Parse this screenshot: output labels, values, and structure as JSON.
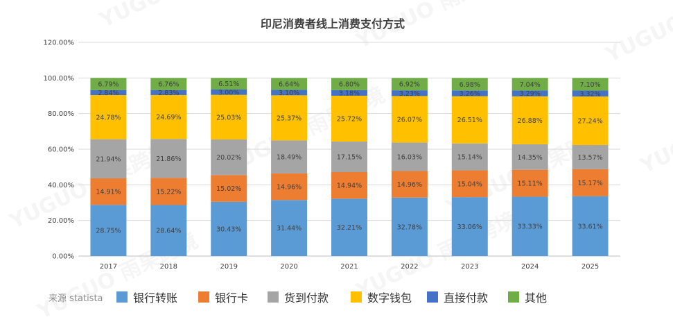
{
  "source_text": "来源 statista",
  "watermark": "YUGUO 雨果跨境",
  "chart_data": {
    "type": "bar",
    "stacked": true,
    "title": "印尼消费者线上消费支付方式",
    "xlabel": "",
    "ylabel": "",
    "ylim": [
      0,
      120
    ],
    "yticks": [
      "0.00%",
      "20.00%",
      "40.00%",
      "60.00%",
      "80.00%",
      "100.00%",
      "120.00%"
    ],
    "grid": true,
    "legend_position": "bottom",
    "categories": [
      "2017",
      "2018",
      "2019",
      "2020",
      "2021",
      "2022",
      "2023",
      "2024",
      "2025"
    ],
    "series": [
      {
        "name": "银行转账",
        "color": "#5b9bd5",
        "values": [
          28.75,
          28.64,
          30.43,
          31.44,
          32.21,
          32.78,
          33.06,
          33.33,
          33.61
        ],
        "labels": [
          "28.75%",
          "28.64%",
          "30.43%",
          "31.44%",
          "32.21%",
          "32.78%",
          "33.06%",
          "33.33%",
          "33.61%"
        ]
      },
      {
        "name": "银行卡",
        "color": "#ed7d31",
        "values": [
          14.91,
          15.22,
          15.02,
          14.96,
          14.94,
          14.96,
          15.04,
          15.11,
          15.17
        ],
        "labels": [
          "14.91%",
          "15.22%",
          "15.02%",
          "14.96%",
          "14.94%",
          "14.96%",
          "15.04%",
          "15.11%",
          "15.17%"
        ]
      },
      {
        "name": "货到付款",
        "color": "#a5a5a5",
        "values": [
          21.94,
          21.86,
          20.02,
          18.49,
          17.15,
          16.03,
          15.14,
          14.35,
          13.57
        ],
        "labels": [
          "21.94%",
          "21.86%",
          "20.02%",
          "18.49%",
          "17.15%",
          "16.03%",
          "15.14%",
          "14.35%",
          "13.57%"
        ]
      },
      {
        "name": "数字钱包",
        "color": "#ffc000",
        "values": [
          24.78,
          24.69,
          25.03,
          25.37,
          25.72,
          26.07,
          26.51,
          26.88,
          27.24
        ],
        "labels": [
          "24.78%",
          "24.69%",
          "25.03%",
          "25.37%",
          "25.72%",
          "26.07%",
          "26.51%",
          "26.88%",
          "27.24%"
        ]
      },
      {
        "name": "直接付款",
        "color": "#4472c4",
        "values": [
          2.84,
          2.83,
          3.0,
          3.1,
          3.18,
          3.23,
          3.26,
          3.29,
          3.32
        ],
        "labels": [
          "2.84%",
          "2.83%",
          "3.00%",
          "3.10%",
          "3.18%",
          "3.23%",
          "3.26%",
          "3.29%",
          "3.32%"
        ]
      },
      {
        "name": "其他",
        "color": "#70ad47",
        "values": [
          6.79,
          6.76,
          6.51,
          6.64,
          6.8,
          6.92,
          6.98,
          7.04,
          7.1
        ],
        "labels": [
          "6.79%",
          "6.76%",
          "6.51%",
          "6.64%",
          "6.80%",
          "6.92%",
          "6.98%",
          "7.04%",
          "7.10%"
        ]
      }
    ]
  }
}
